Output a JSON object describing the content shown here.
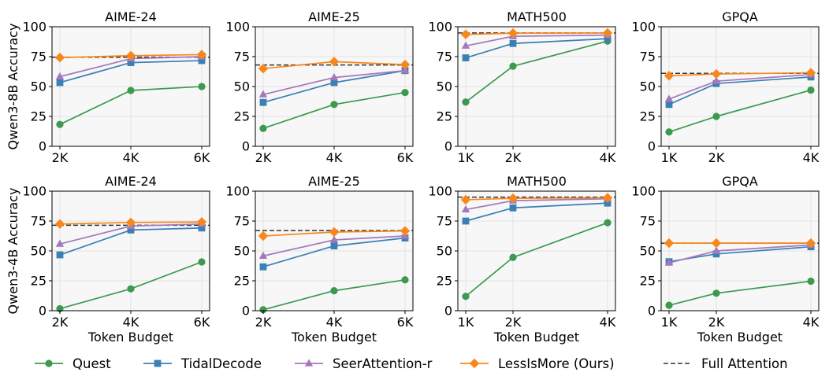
{
  "figure": {
    "row_labels": [
      "Qwen3-8B Accuracy",
      "Qwen3-4B Accuracy"
    ],
    "x_axis_label": "Token Budget"
  },
  "legend": {
    "items": [
      {
        "label": "Quest",
        "color": "#3b9a4f",
        "marker": "circle",
        "dashed": false
      },
      {
        "label": "TidalDecode",
        "color": "#3a80b5",
        "marker": "square",
        "dashed": false
      },
      {
        "label": "SeerAttention-r",
        "color": "#a478bc",
        "marker": "triangle",
        "dashed": false
      },
      {
        "label": "LessIsMore (Ours)",
        "color": "#f7871d",
        "marker": "diamond",
        "dashed": false
      },
      {
        "label": "Full Attention",
        "color": "#333333",
        "marker": "none",
        "dashed": true
      }
    ]
  },
  "chart_data": [
    {
      "type": "line",
      "row": 0,
      "col": 0,
      "title": "AIME-24",
      "ylabel": "Qwen3-8B Accuracy",
      "xlabel": "",
      "categories": [
        "2K",
        "4K",
        "6K"
      ],
      "ylim": [
        0,
        100
      ],
      "yticks": [
        0,
        25,
        50,
        75,
        100
      ],
      "grid": true,
      "series": [
        {
          "name": "Quest",
          "values": [
            18.3,
            46.7,
            50.0
          ]
        },
        {
          "name": "TidalDecode",
          "values": [
            53.3,
            70.0,
            71.7
          ]
        },
        {
          "name": "SeerAttention-r",
          "values": [
            58.3,
            73.3,
            75.0
          ]
        },
        {
          "name": "LessIsMore (Ours)",
          "values": [
            74.2,
            75.8,
            76.7
          ]
        }
      ],
      "full_attention": 74.5
    },
    {
      "type": "line",
      "row": 0,
      "col": 1,
      "title": "AIME-25",
      "ylabel": "",
      "xlabel": "",
      "categories": [
        "2K",
        "4K",
        "6K"
      ],
      "ylim": [
        0,
        100
      ],
      "yticks": [
        0,
        25,
        50,
        75,
        100
      ],
      "grid": true,
      "series": [
        {
          "name": "Quest",
          "values": [
            15.0,
            35.0,
            45.0
          ]
        },
        {
          "name": "TidalDecode",
          "values": [
            36.7,
            53.3,
            63.3
          ]
        },
        {
          "name": "SeerAttention-r",
          "values": [
            43.3,
            57.5,
            63.3
          ]
        },
        {
          "name": "LessIsMore (Ours)",
          "values": [
            65.0,
            70.8,
            68.3
          ]
        }
      ],
      "full_attention": 68.0
    },
    {
      "type": "line",
      "row": 0,
      "col": 2,
      "title": "MATH500",
      "ylabel": "",
      "xlabel": "",
      "categories": [
        "1K",
        "2K",
        "4K"
      ],
      "x": [
        1,
        2,
        4
      ],
      "ylim": [
        0,
        100
      ],
      "yticks": [
        0,
        25,
        50,
        75,
        100
      ],
      "grid": true,
      "series": [
        {
          "name": "Quest",
          "values": [
            37.0,
            67.0,
            88.0
          ]
        },
        {
          "name": "TidalDecode",
          "values": [
            74.0,
            86.0,
            90.0
          ]
        },
        {
          "name": "SeerAttention-r",
          "values": [
            84.0,
            92.0,
            93.0
          ]
        },
        {
          "name": "LessIsMore (Ours)",
          "values": [
            93.6,
            94.6,
            94.8
          ]
        }
      ],
      "full_attention": 94.8
    },
    {
      "type": "line",
      "row": 0,
      "col": 3,
      "title": "GPQA",
      "ylabel": "",
      "xlabel": "",
      "categories": [
        "1K",
        "2K",
        "4K"
      ],
      "x": [
        1,
        2,
        4
      ],
      "ylim": [
        0,
        100
      ],
      "yticks": [
        0,
        25,
        50,
        75,
        100
      ],
      "grid": true,
      "series": [
        {
          "name": "Quest",
          "values": [
            12.0,
            25.0,
            47.0
          ]
        },
        {
          "name": "TidalDecode",
          "values": [
            35.0,
            52.5,
            58.0
          ]
        },
        {
          "name": "SeerAttention-r",
          "values": [
            39.5,
            54.5,
            60.0
          ]
        },
        {
          "name": "LessIsMore (Ours)",
          "values": [
            59.0,
            60.5,
            61.5
          ]
        }
      ],
      "full_attention": 61.0
    },
    {
      "type": "line",
      "row": 1,
      "col": 0,
      "title": "AIME-24",
      "ylabel": "Qwen3-4B Accuracy",
      "xlabel": "Token Budget",
      "categories": [
        "2K",
        "4K",
        "6K"
      ],
      "ylim": [
        0,
        100
      ],
      "yticks": [
        0,
        25,
        50,
        75,
        100
      ],
      "grid": true,
      "series": [
        {
          "name": "Quest",
          "values": [
            1.7,
            18.3,
            40.8
          ]
        },
        {
          "name": "TidalDecode",
          "values": [
            46.7,
            67.5,
            69.2
          ]
        },
        {
          "name": "SeerAttention-r",
          "values": [
            55.8,
            70.8,
            72.5
          ]
        },
        {
          "name": "LessIsMore (Ours)",
          "values": [
            72.5,
            73.8,
            74.2
          ]
        }
      ],
      "full_attention": 71.5
    },
    {
      "type": "line",
      "row": 1,
      "col": 1,
      "title": "AIME-25",
      "ylabel": "",
      "xlabel": "Token Budget",
      "categories": [
        "2K",
        "4K",
        "6K"
      ],
      "ylim": [
        0,
        100
      ],
      "yticks": [
        0,
        25,
        50,
        75,
        100
      ],
      "grid": true,
      "series": [
        {
          "name": "Quest",
          "values": [
            0.8,
            16.7,
            25.8
          ]
        },
        {
          "name": "TidalDecode",
          "values": [
            36.7,
            54.2,
            60.8
          ]
        },
        {
          "name": "SeerAttention-r",
          "values": [
            45.8,
            59.2,
            62.5
          ]
        },
        {
          "name": "LessIsMore (Ours)",
          "values": [
            62.5,
            65.8,
            66.7
          ]
        }
      ],
      "full_attention": 67.0
    },
    {
      "type": "line",
      "row": 1,
      "col": 2,
      "title": "MATH500",
      "ylabel": "",
      "xlabel": "Token Budget",
      "categories": [
        "1K",
        "2K",
        "4K"
      ],
      "x": [
        1,
        2,
        4
      ],
      "ylim": [
        0,
        100
      ],
      "yticks": [
        0,
        25,
        50,
        75,
        100
      ],
      "grid": true,
      "series": [
        {
          "name": "Quest",
          "values": [
            12.0,
            44.6,
            73.6
          ]
        },
        {
          "name": "TidalDecode",
          "values": [
            75.0,
            86.0,
            90.0
          ]
        },
        {
          "name": "SeerAttention-r",
          "values": [
            84.6,
            92.0,
            93.6
          ]
        },
        {
          "name": "LessIsMore (Ours)",
          "values": [
            92.8,
            94.0,
            94.4
          ]
        }
      ],
      "full_attention": 95.0
    },
    {
      "type": "line",
      "row": 1,
      "col": 3,
      "title": "GPQA",
      "ylabel": "",
      "xlabel": "Token Budget",
      "categories": [
        "1K",
        "2K",
        "4K"
      ],
      "x": [
        1,
        2,
        4
      ],
      "ylim": [
        0,
        100
      ],
      "yticks": [
        0,
        25,
        50,
        75,
        100
      ],
      "grid": true,
      "series": [
        {
          "name": "Quest",
          "values": [
            4.5,
            14.6,
            24.7
          ]
        },
        {
          "name": "TidalDecode",
          "values": [
            41.0,
            47.5,
            53.5
          ]
        },
        {
          "name": "SeerAttention-r",
          "values": [
            40.0,
            50.0,
            55.0
          ]
        },
        {
          "name": "LessIsMore (Ours)",
          "values": [
            56.5,
            56.5,
            56.5
          ]
        }
      ],
      "full_attention": 56.5
    }
  ]
}
